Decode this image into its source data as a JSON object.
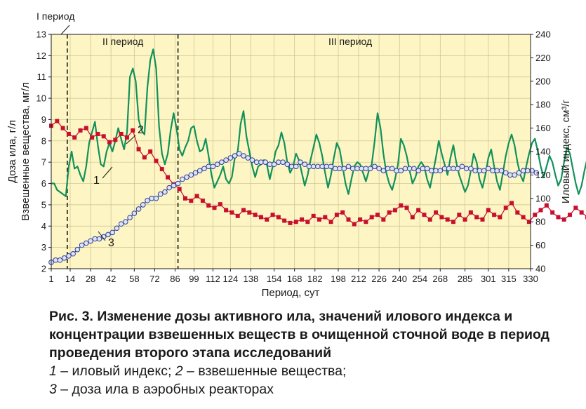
{
  "chart_data": {
    "type": "line",
    "xlabel": "Период, сут",
    "ylabel_left_1": "Доза ила, г/л",
    "ylabel_left_2": "Взвешенные вещества, мг/л",
    "ylabel_right": "Иловый индекс, см³/г",
    "x_ticks": [
      "1",
      "14",
      "28",
      "42",
      "58",
      "72",
      "86",
      "99",
      "112",
      "124",
      "138",
      "154",
      "168",
      "182",
      "198",
      "212",
      "226",
      "240",
      "254",
      "268",
      "285",
      "301",
      "315",
      "330"
    ],
    "ylim_left": [
      2,
      13
    ],
    "y_left_ticks": [
      "2",
      "3",
      "4",
      "5",
      "6",
      "7",
      "8",
      "9",
      "10",
      "11",
      "12",
      "13"
    ],
    "ylim_right": [
      40,
      240
    ],
    "y_right_ticks": [
      "40",
      "60",
      "80",
      "100",
      "120",
      "140",
      "160",
      "180",
      "200",
      "220",
      "240"
    ],
    "periods": [
      {
        "label": "I период",
        "boundary_x": 12
      },
      {
        "label": "II период",
        "boundary_x": 88
      },
      {
        "label": "III период",
        "boundary_x": null
      }
    ],
    "callouts": [
      "1",
      "2",
      "3"
    ],
    "series": [
      {
        "id": "sludge_index",
        "axis": "right",
        "color": "#c8102e",
        "marker": "square",
        "step": 4,
        "x_start": 1,
        "values": [
          162,
          166,
          160,
          155,
          152,
          158,
          160,
          152,
          155,
          153,
          148,
          150,
          155,
          152,
          158,
          142,
          135,
          140,
          132,
          125,
          118,
          112,
          108,
          100,
          98,
          102,
          98,
          94,
          92,
          95,
          90,
          88,
          85,
          90,
          88,
          86,
          84,
          82,
          86,
          84,
          81,
          79,
          80,
          82,
          80,
          85,
          82,
          84,
          80,
          86,
          88,
          82,
          78,
          82,
          80,
          84,
          86,
          82,
          88,
          90,
          94,
          92,
          84,
          90,
          86,
          82,
          88,
          84,
          82,
          80,
          86,
          82,
          88,
          84,
          82,
          90,
          86,
          84,
          92,
          96,
          88,
          84,
          80,
          86,
          90,
          94,
          88,
          84,
          82,
          86,
          92,
          88,
          84,
          86,
          90,
          94,
          86,
          88,
          84,
          90,
          92,
          86,
          82,
          88,
          94,
          92,
          86,
          84,
          90,
          86,
          82,
          88,
          86,
          84,
          80,
          78,
          82,
          80,
          84,
          88,
          90,
          86,
          92,
          86,
          82,
          80,
          78
        ],
        "legend": "иловый индекс"
      },
      {
        "id": "suspended_solids",
        "axis": "left",
        "color": "#12915a",
        "marker": "none",
        "step": 2,
        "x_start": 1,
        "values": [
          6.0,
          6.0,
          5.7,
          5.6,
          5.5,
          5.4,
          6.8,
          7.5,
          6.7,
          6.8,
          6.4,
          6.1,
          6.8,
          7.9,
          8.4,
          8.9,
          7.8,
          6.9,
          6.8,
          7.5,
          7.9,
          7.5,
          8.0,
          8.6,
          8.1,
          7.6,
          8.4,
          11.0,
          11.4,
          10.8,
          9.0,
          8.5,
          8.3,
          10.5,
          11.8,
          12.3,
          11.4,
          8.7,
          7.4,
          6.9,
          7.4,
          8.5,
          9.3,
          8.6,
          7.6,
          7.3,
          7.7,
          8.0,
          8.6,
          8.7,
          8.0,
          7.5,
          7.6,
          8.1,
          7.3,
          6.4,
          5.8,
          6.1,
          6.4,
          6.8,
          6.2,
          6.0,
          6.3,
          7.2,
          7.5,
          8.8,
          9.4,
          8.2,
          7.5,
          6.8,
          6.3,
          6.8,
          6.9,
          7.1,
          6.9,
          6.2,
          6.8,
          7.5,
          7.8,
          8.4,
          7.9,
          7.0,
          6.5,
          6.8,
          7.4,
          7.1,
          6.5,
          5.9,
          6.4,
          7.1,
          7.7,
          8.3,
          7.9,
          7.3,
          6.5,
          5.8,
          6.4,
          7.2,
          7.9,
          7.6,
          6.8,
          6.0,
          5.5,
          6.2,
          6.8,
          7.0,
          6.9,
          6.5,
          6.1,
          6.6,
          6.9,
          8.0,
          9.3,
          8.6,
          7.4,
          6.5,
          6.0,
          5.7,
          6.2,
          6.9,
          8.1,
          7.8,
          7.3,
          6.6,
          6.0,
          6.3,
          6.8,
          7.0,
          6.8,
          6.2,
          5.8,
          6.5,
          7.2,
          8.0,
          7.4,
          6.9,
          6.4,
          7.2,
          7.8,
          7.0,
          6.4,
          6.0,
          5.6,
          5.9,
          6.6,
          7.4,
          7.0,
          6.2,
          5.8,
          6.4,
          7.2,
          7.6,
          6.8,
          6.1,
          5.7,
          6.5,
          7.3,
          7.9,
          8.3,
          7.8,
          7.0,
          6.4,
          6.1,
          6.8,
          7.4,
          7.9,
          8.1,
          7.5,
          6.8,
          6.3,
          6.8,
          7.3,
          7.0,
          6.4,
          5.9,
          6.2,
          7.0,
          7.7,
          7.4,
          6.7,
          6.0,
          5.5,
          5.9,
          6.6,
          7.2,
          7.8,
          7.4,
          6.8,
          6.3,
          6.6,
          7.2,
          7.9,
          8.0,
          7.5,
          7.0,
          6.7,
          7.3,
          8.2,
          8.5,
          7.9,
          7.0,
          6.3,
          5.9,
          6.6,
          7.6,
          8.1,
          8.4,
          7.8,
          7.1,
          6.5,
          6.0,
          6.5,
          7.3,
          7.9,
          7.4,
          6.7,
          6.2,
          5.8,
          6.2,
          6.9,
          7.6,
          8.3,
          7.9,
          7.0,
          6.4,
          6.0,
          6.5,
          7.2,
          7.8,
          7.3,
          6.6,
          6.1,
          5.8,
          6.3,
          7.0,
          7.5,
          7.2,
          6.6,
          6.1,
          5.8,
          6.2,
          6.9,
          7.4,
          7.9,
          7.3,
          6.6,
          6.1,
          5.9,
          6.5,
          7.2,
          7.8,
          7.3,
          6.7,
          6.3,
          6.0,
          6.6,
          7.1,
          6.6,
          6.1,
          5.7,
          6.0,
          6.8,
          7.5,
          8.0,
          7.4,
          6.6,
          6.0,
          5.6,
          6.2,
          7.0,
          7.6,
          7.2,
          6.6,
          6.1,
          5.7,
          6.3,
          7.2,
          7.7,
          8.2,
          8.9,
          8.3,
          7.2,
          6.2,
          5.5,
          5.3,
          5.8,
          6.2,
          6.0,
          5.8,
          6.1,
          6.0,
          5.6
        ]
      },
      {
        "id": "sludge_dose",
        "axis": "left",
        "color": "#2f3f95",
        "marker": "circle",
        "step": 3,
        "x_start": 1,
        "values": [
          2.3,
          2.4,
          2.4,
          2.5,
          2.6,
          2.7,
          2.9,
          3.1,
          3.2,
          3.3,
          3.4,
          3.4,
          3.5,
          3.6,
          3.7,
          3.9,
          4.1,
          4.2,
          4.4,
          4.6,
          4.8,
          5.0,
          5.2,
          5.3,
          5.3,
          5.5,
          5.6,
          5.8,
          5.9,
          6.0,
          6.2,
          6.3,
          6.4,
          6.5,
          6.6,
          6.7,
          6.8,
          6.8,
          6.9,
          7.0,
          7.1,
          7.2,
          7.3,
          7.4,
          7.3,
          7.2,
          7.1,
          7.0,
          7.0,
          7.0,
          6.9,
          6.9,
          7.0,
          7.0,
          6.9,
          6.8,
          6.8,
          7.0,
          6.9,
          6.8,
          6.8,
          6.8,
          6.8,
          6.8,
          6.8,
          6.7,
          6.7,
          6.7,
          6.8,
          6.7,
          6.7,
          6.7,
          6.7,
          6.7,
          6.8,
          6.7,
          6.6,
          6.7,
          6.7,
          6.6,
          6.6,
          6.7,
          6.7,
          6.7,
          6.6,
          6.7,
          6.7,
          6.6,
          6.6,
          6.6,
          6.7,
          6.7,
          6.7,
          6.7,
          6.8,
          6.7,
          6.7,
          6.6,
          6.6,
          6.6,
          6.7,
          6.6,
          6.6,
          6.6,
          6.5,
          6.4,
          6.4,
          6.5,
          6.6,
          6.6,
          6.6,
          6.5
        ]
      }
    ]
  },
  "caption": {
    "title": "Рис. 3. Изменение дозы активного ила, значений илового индекса и концентрации взвешенных веществ в очищенной сточной воде в период проведения второго этапа исследований",
    "legend_1_num": "1",
    "legend_1_text": " – иловый индекс; ",
    "legend_2_num": "2",
    "legend_2_text": " – взвешенные вещества;",
    "legend_3_num": "3",
    "legend_3_text": " – доза ила в аэробных реакторах"
  },
  "colors": {
    "plot_background": "#fdf6c4",
    "grid": "#c8c08a",
    "series_1": "#c8102e",
    "series_2": "#12915a",
    "series_3": "#2f3f95",
    "series_3_fill": "#dfe4f5"
  }
}
